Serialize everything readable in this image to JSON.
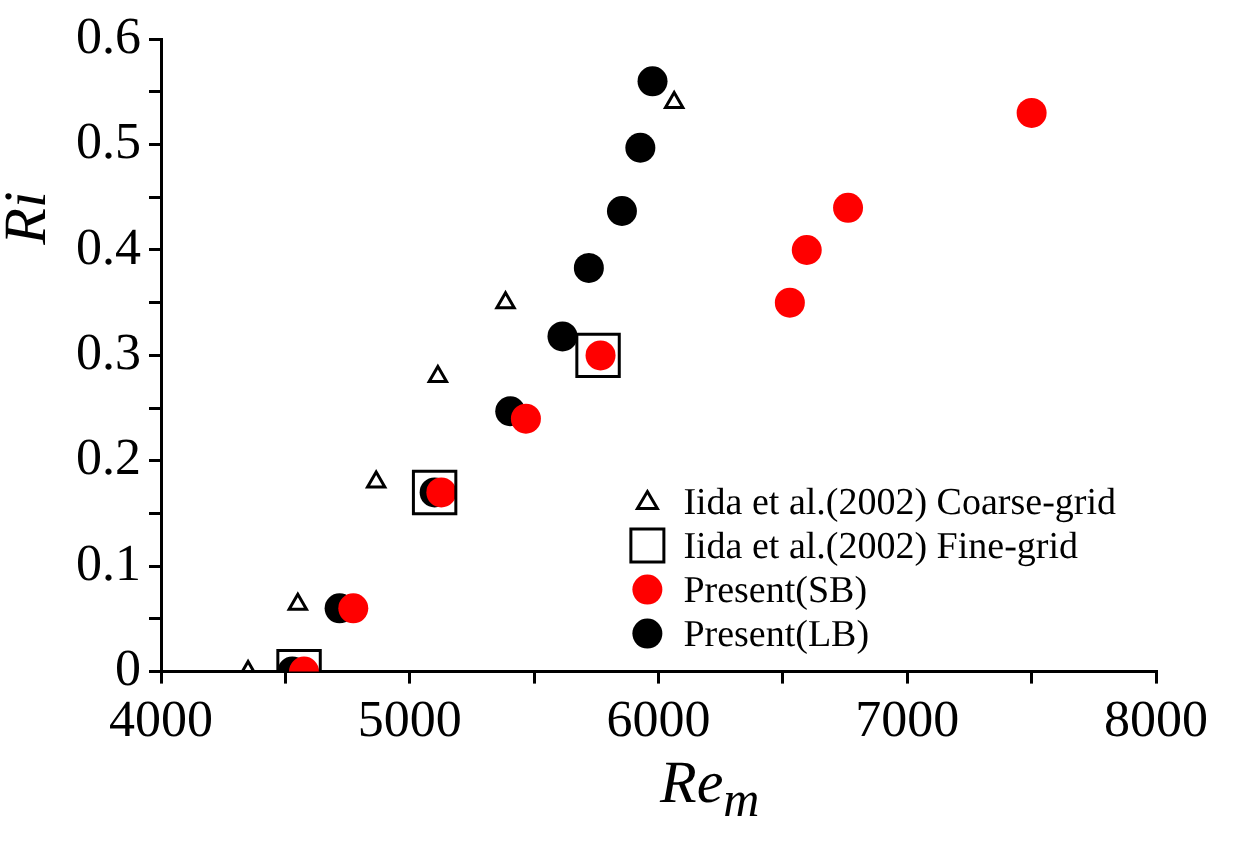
{
  "chart_data": {
    "type": "scatter",
    "xlabel": "Re$_{m}$",
    "ylabel": "Ri",
    "xlim": [
      4000,
      8000
    ],
    "ylim": [
      0,
      0.6
    ],
    "xticks": [
      4000,
      {
        "value": 4500,
        "label": null
      },
      5000,
      {
        "value": 5500,
        "label": null
      },
      6000,
      {
        "value": 6500,
        "label": null
      },
      7000,
      {
        "value": 7500,
        "label": null
      },
      8000
    ],
    "yticks": [
      0,
      {
        "value": 0.05,
        "label": null
      },
      0.1,
      {
        "value": 0.15,
        "label": null
      },
      0.2,
      {
        "value": 0.25,
        "label": null
      },
      0.3,
      {
        "value": 0.35,
        "label": null
      },
      0.4,
      {
        "value": 0.45,
        "label": null
      },
      0.5,
      {
        "value": 0.55,
        "label": null
      },
      0.6
    ],
    "legend": "bottom right",
    "series": [
      {
        "name": "Iida et al.(2002) Coarse-grid",
        "color": "#000000",
        "marker": "triangle",
        "x": [
          4350,
          4550,
          4865,
          5113,
          5385,
          6063
        ],
        "values": [
          0,
          0.064,
          0.18,
          0.28,
          0.35,
          0.54
        ]
      },
      {
        "name": "Iida et al.(2002) Fine-grid",
        "color": "#000000",
        "marker": "square",
        "x": [
          4555,
          5100,
          5757
        ],
        "values": [
          0,
          0.17,
          0.3
        ]
      },
      {
        "name": "Present(SB)",
        "color": "#ff0000",
        "marker": "circle",
        "x": [
          4575,
          4773,
          5127,
          5467,
          5767,
          6528,
          6596,
          6762,
          7500
        ],
        "values": [
          0,
          0.06,
          0.17,
          0.24,
          0.3,
          0.35,
          0.4,
          0.44,
          0.53
        ]
      },
      {
        "name": "Present(LB)",
        "color": "#000000",
        "marker": "circle",
        "x": [
          4528,
          4718,
          5100,
          5404,
          5614,
          5720,
          5853,
          5927,
          5976
        ],
        "values": [
          0,
          0.06,
          0.17,
          0.247,
          0.318,
          0.383,
          0.437,
          0.497,
          0.56
        ]
      }
    ]
  }
}
